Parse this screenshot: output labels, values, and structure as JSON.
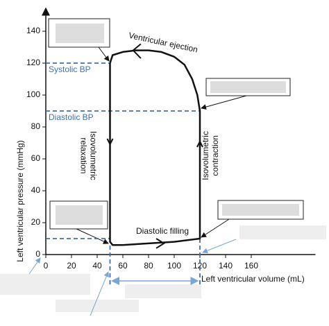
{
  "chart_data": {
    "type": "line",
    "y_label": "Left ventricular pressure (mmHg)",
    "x_label": "Left ventricular volume (mL)",
    "xlim": [
      0,
      210
    ],
    "ylim": [
      0,
      150
    ],
    "xticks": [
      0,
      20,
      40,
      60,
      80,
      100,
      120,
      140,
      160
    ],
    "yticks": [
      0,
      20,
      40,
      60,
      80,
      100,
      120,
      140
    ],
    "series": [
      {
        "color": "#111111",
        "x": [
          50,
          52,
          60,
          70,
          80,
          90,
          100,
          108,
          114,
          118,
          120,
          120,
          100,
          80,
          60,
          52,
          50,
          50
        ],
        "values": [
          120,
          125,
          127,
          128,
          128,
          127,
          124,
          119,
          110,
          100,
          90,
          10,
          8,
          7,
          6,
          6,
          8,
          120
        ]
      }
    ],
    "reference_lines": [
      {
        "value": 120,
        "label": "Systolic BP"
      },
      {
        "value": 90,
        "label": "Diastolic BP"
      }
    ],
    "filling_pressure": 10,
    "volume_markers": [
      50,
      120
    ],
    "ref_color": "#3f6fb0",
    "annotations": [
      "Ventricular ejection",
      "Isovolumetric relaxation",
      "Isovolumetric contraction",
      "Diastolic filling"
    ]
  }
}
